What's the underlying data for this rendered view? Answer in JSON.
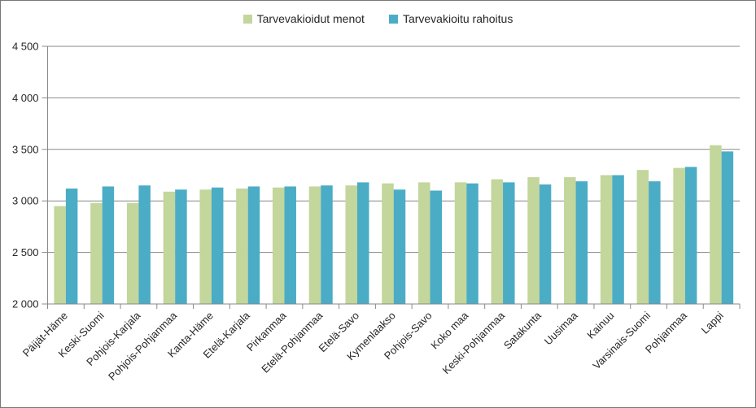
{
  "legend": {
    "items": [
      {
        "label": "Tarvevakioidut menot",
        "color": "#C3D69B"
      },
      {
        "label": "Tarvevakioitu rahoitus",
        "color": "#4BACC6"
      }
    ]
  },
  "chart_data": {
    "type": "bar",
    "title": "",
    "xlabel": "",
    "ylabel": "",
    "categories": [
      "Päijät-Häme",
      "Keski-Suomi",
      "Pohjois-Karjala",
      "Pohjois-Pohjanmaa",
      "Kanta-Häme",
      "Etelä-Karjala",
      "Pirkanmaa",
      "Etelä-Pohjanmaa",
      "Etelä-Savo",
      "Kymenlaakso",
      "Pohjois-Savo",
      "Koko maa",
      "Keski-Pohjanmaa",
      "Satakunta",
      "Uusimaa",
      "Kainuu",
      "Varsinais-Suomi",
      "Pohjanmaa",
      "Lappi"
    ],
    "series": [
      {
        "name": "Tarvevakioidut menot",
        "color": "#C3D69B",
        "values": [
          2950,
          2980,
          2980,
          3090,
          3110,
          3120,
          3130,
          3140,
          3150,
          3170,
          3180,
          3180,
          3210,
          3230,
          3230,
          3250,
          3300,
          3320,
          3540
        ]
      },
      {
        "name": "Tarvevakioitu rahoitus",
        "color": "#4BACC6",
        "values": [
          3120,
          3140,
          3150,
          3110,
          3130,
          3140,
          3140,
          3150,
          3180,
          3110,
          3100,
          3170,
          3180,
          3160,
          3190,
          3250,
          3190,
          3330,
          3480
        ]
      }
    ],
    "ylim": [
      2000,
      4500
    ],
    "ytick_step": 500,
    "ytick_labels": [
      "2 000",
      "2 500",
      "3 000",
      "3 500",
      "4 000",
      "4 500"
    ],
    "grid": true,
    "legend_position": "top",
    "x_label_rotation_deg": 45,
    "colors": {
      "gridline": "#898989",
      "axis_line": "#898989",
      "tick": "#898989",
      "label_text": "#262626"
    }
  }
}
